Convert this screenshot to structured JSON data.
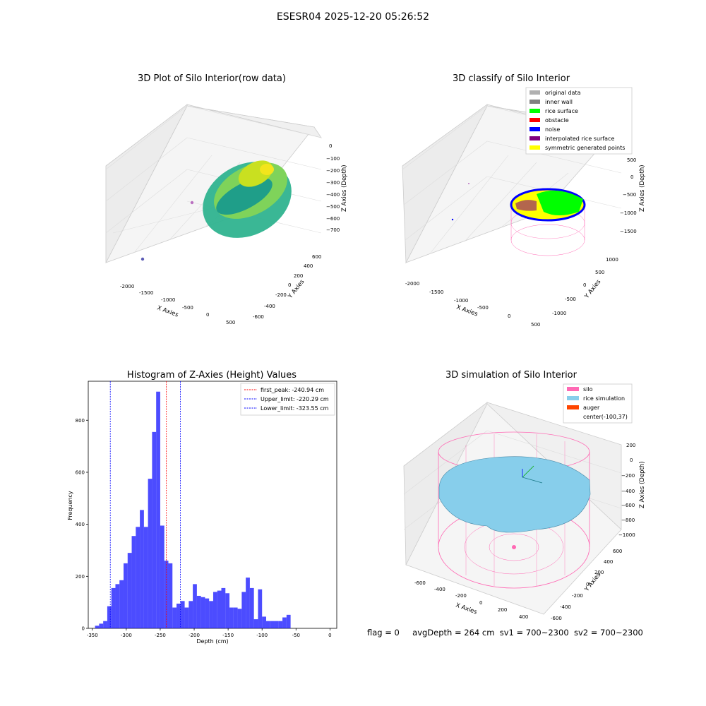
{
  "suptitle": "ESESR04 2025-12-20 05:26:52",
  "status_line": {
    "flag": "flag = 0",
    "avg_depth": "avgDepth = 264 cm",
    "sv1": "sv1 = 700~2300",
    "sv2": "sv2 = 700~2300"
  },
  "colors": {
    "original": "#b0b0b0",
    "inner_wall": "#808080",
    "rice_surface": "#00ff00",
    "obstacle": "#ff0000",
    "noise": "#0000ff",
    "interpolated": "#800080",
    "symmetric": "#ffff00",
    "silo": "#ff69b4",
    "rice_sim": "#87ceeb",
    "auger": "#ff4500",
    "hist_bar": "#0000ff",
    "peak_line": "#ff0000",
    "limit_line": "#0000ff"
  },
  "chart_data": [
    {
      "type": "scatter3d",
      "title": "3D Plot of Silo Interior(row data)",
      "xlabel": "X Axies",
      "ylabel": "Y Axies",
      "zlabel": "Z Axies (Depth)",
      "x_ticks": [
        "-2000",
        "-1500",
        "-1000",
        "-500",
        "0",
        "500"
      ],
      "y_ticks": [
        "-600",
        "-400",
        "-200",
        "0",
        "200",
        "400",
        "600"
      ],
      "z_ticks": [
        "0",
        "−100",
        "−200",
        "−300",
        "−400",
        "−500",
        "−600",
        "−700"
      ]
    },
    {
      "type": "scatter3d",
      "title": "3D classify of Silo Interior",
      "xlabel": "X Axies",
      "ylabel": "Y Axies",
      "zlabel": "Z Axies (Depth)",
      "x_ticks": [
        "-2000",
        "-1500",
        "-1000",
        "-500",
        "0",
        "500"
      ],
      "y_ticks": [
        "-1000",
        "-500",
        "0",
        "500",
        "1000"
      ],
      "z_ticks": [
        "500",
        "0",
        "−500",
        "−1000",
        "−1500"
      ],
      "legend": [
        "original data",
        "inner wall",
        "rice surface",
        "obstacle",
        "noise",
        "interpolated rice surface",
        "symmetric generated points"
      ],
      "legend_position": "top-right"
    },
    {
      "type": "bar",
      "title": "Histogram of Z-Axies (Height) Values",
      "xlabel": "Depth (cm)",
      "ylabel": "Frequency",
      "xlim": [
        -356,
        10
      ],
      "ylim": [
        0,
        950
      ],
      "x_ticks": [
        -350,
        -300,
        -250,
        -200,
        -150,
        -100,
        -50,
        0
      ],
      "y_ticks": [
        0,
        200,
        400,
        600,
        800
      ],
      "bin_start": -346,
      "bin_width": 6,
      "values": [
        10,
        18,
        28,
        85,
        155,
        170,
        185,
        250,
        290,
        355,
        390,
        455,
        390,
        575,
        755,
        910,
        395,
        260,
        250,
        80,
        95,
        105,
        80,
        105,
        170,
        125,
        120,
        115,
        105,
        140,
        145,
        155,
        135,
        80,
        80,
        75,
        140,
        195,
        155,
        35,
        150,
        45,
        28,
        28,
        28,
        28,
        42,
        52
      ],
      "lines": [
        {
          "label": "first_peak: -240.94 cm",
          "x": -240.94,
          "style": "red"
        },
        {
          "label": "Upper_limit: -220.29 cm",
          "x": -220.29,
          "style": "blue"
        },
        {
          "label": "Lower_limit: -323.55 cm",
          "x": -323.55,
          "style": "blue"
        }
      ],
      "legend_position": "top-right"
    },
    {
      "type": "surface3d",
      "title": "3D simulation of Silo Interior",
      "xlabel": "X Axies",
      "ylabel": "Y Axies",
      "zlabel": "Z Axies (Depth)",
      "x_ticks": [
        "-600",
        "-400",
        "-200",
        "0",
        "200",
        "400"
      ],
      "y_ticks": [
        "-600",
        "-400",
        "-200",
        "0",
        "200",
        "400",
        "600"
      ],
      "z_ticks": [
        "200",
        "0",
        "−200",
        "−400",
        "−600",
        "−800",
        "−1000"
      ],
      "legend": [
        "silo",
        "rice simulation",
        "auger",
        "center(-100,37)"
      ],
      "legend_position": "top-right"
    }
  ]
}
